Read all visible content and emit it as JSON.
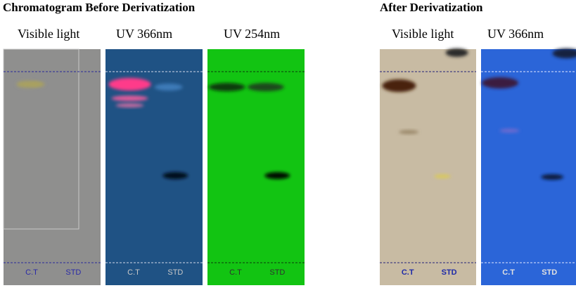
{
  "header": {
    "before_title": "Chromatogram Before Derivatization",
    "after_title": "After Derivatization"
  },
  "panels": [
    {
      "label": "Visible light",
      "lanes": [
        "C.T",
        "STD"
      ]
    },
    {
      "label": "UV 366nm",
      "lanes": [
        "C.T",
        "STD"
      ]
    },
    {
      "label": "UV 254nm",
      "lanes": [
        "C.T",
        "STD"
      ]
    },
    {
      "label": "Visible light",
      "lanes": [
        "C.T",
        "STD"
      ]
    },
    {
      "label": "UV 366nm",
      "lanes": [
        "C.T",
        "STD"
      ]
    }
  ]
}
